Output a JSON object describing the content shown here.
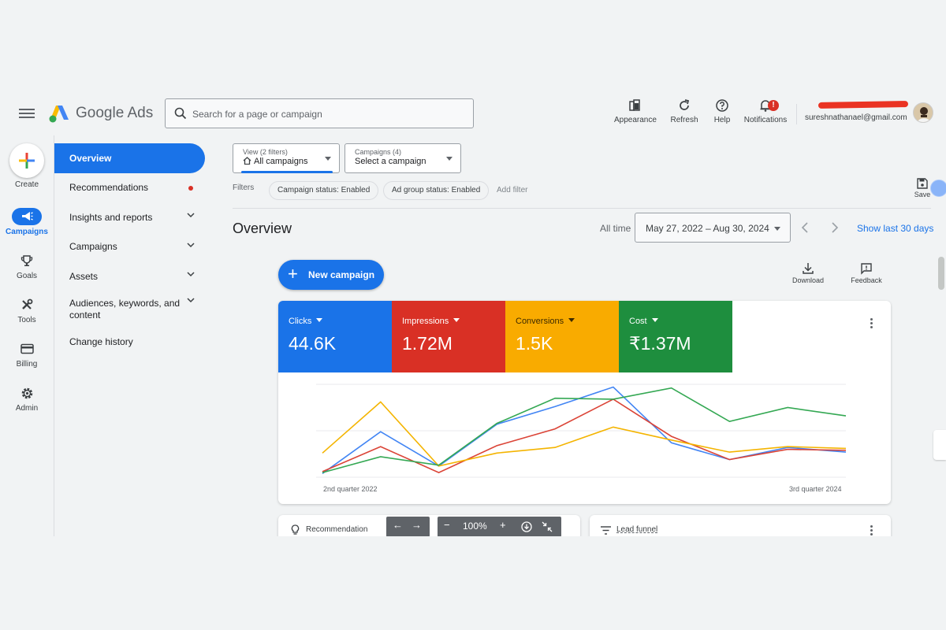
{
  "app": {
    "brand": "Google Ads"
  },
  "search": {
    "placeholder": "Search for a page or campaign"
  },
  "topbar": {
    "actions": [
      {
        "label": "Appearance",
        "icon": "appearance-icon"
      },
      {
        "label": "Refresh",
        "icon": "refresh-icon"
      },
      {
        "label": "Help",
        "icon": "help-icon"
      },
      {
        "label": "Notifications",
        "icon": "bell-icon",
        "badge": "!"
      }
    ],
    "email": "sureshnathanael@gmail.com"
  },
  "rail": {
    "create_label": "Create",
    "items": [
      {
        "label": "Campaigns",
        "icon": "megaphone-icon",
        "active": true
      },
      {
        "label": "Goals",
        "icon": "trophy-icon"
      },
      {
        "label": "Tools",
        "icon": "tools-icon"
      },
      {
        "label": "Billing",
        "icon": "credit-card-icon"
      },
      {
        "label": "Admin",
        "icon": "gear-icon"
      }
    ]
  },
  "nav": {
    "items": [
      {
        "label": "Overview"
      },
      {
        "label": "Recommendations"
      },
      {
        "label": "Insights and reports"
      },
      {
        "label": "Campaigns"
      },
      {
        "label": "Assets"
      },
      {
        "label": "Audiences, keywords, and content"
      },
      {
        "label": "Change history"
      }
    ]
  },
  "filters": {
    "view_small": "View (2 filters)",
    "view_value": "All campaigns",
    "campaigns_small": "Campaigns (4)",
    "campaigns_value": "Select a campaign",
    "label": "Filters",
    "chips": [
      "Campaign status: Enabled",
      "Ad group status: Enabled"
    ],
    "add_filter": "Add filter",
    "save_label": "Save"
  },
  "header": {
    "title": "Overview",
    "all_time": "All time",
    "date_range": "May 27, 2022 – Aug 30, 2024",
    "show_last": "Show last 30 days"
  },
  "actions": {
    "new_campaign": "New campaign",
    "download": "Download",
    "feedback": "Feedback"
  },
  "metrics": [
    {
      "name": "Clicks",
      "value": "44.6K",
      "color": "#1a73e8"
    },
    {
      "name": "Impressions",
      "value": "1.72M",
      "color": "#d93025"
    },
    {
      "name": "Conversions",
      "value": "1.5K",
      "color": "#f9ab00"
    },
    {
      "name": "Cost",
      "value": "₹1.37M",
      "color": "#1e8e3e"
    }
  ],
  "chart_data": {
    "type": "line",
    "x_start_label": "2nd quarter 2022",
    "x_end_label": "3rd quarter 2024",
    "ylim": [
      0,
      100
    ],
    "grid": true,
    "series": [
      {
        "values": [
          4,
          49,
          12,
          57,
          76,
          97,
          37,
          19,
          32,
          27
        ],
        "color": "#4285f4"
      },
      {
        "values": [
          6,
          33,
          5,
          34,
          52,
          84,
          44,
          19,
          30,
          29
        ],
        "color": "#db4437"
      },
      {
        "values": [
          26,
          81,
          12,
          26,
          32,
          54,
          40,
          27,
          33,
          31
        ],
        "color": "#f4b400"
      },
      {
        "values": [
          5,
          22,
          13,
          58,
          85,
          84,
          96,
          60,
          75,
          66
        ],
        "color": "#34a853"
      }
    ]
  },
  "bottom": {
    "recommendation": "Recommendation",
    "zoom": "100%",
    "lead_funnel": "Lead funnel"
  }
}
